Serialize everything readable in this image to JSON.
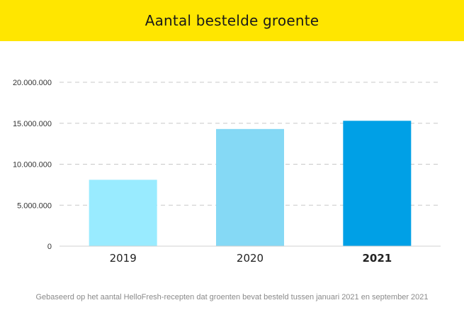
{
  "header": {
    "title": "Aantal bestelde groente",
    "background": "#ffe600"
  },
  "footnote": "Gebaseerd op het aantal HelloFresh-recepten dat groenten bevat besteld tussen januari 2021 en september 2021",
  "chart_data": {
    "type": "bar",
    "title": "Aantal bestelde groente",
    "categories": [
      "2019",
      "2020",
      "2021"
    ],
    "values": [
      8100000,
      14300000,
      15300000
    ],
    "bar_colors": [
      "#99ebff",
      "#85d9f5",
      "#00a0e6"
    ],
    "highlight_category": "2021",
    "ylim": [
      0,
      20000000
    ],
    "yticks": [
      0,
      5000000,
      10000000,
      15000000,
      20000000
    ],
    "ytick_labels": [
      "0",
      "5.000.000",
      "10.000.000",
      "15.000.000",
      "20.000.000"
    ],
    "grid": true,
    "xlabel": "",
    "ylabel": ""
  }
}
